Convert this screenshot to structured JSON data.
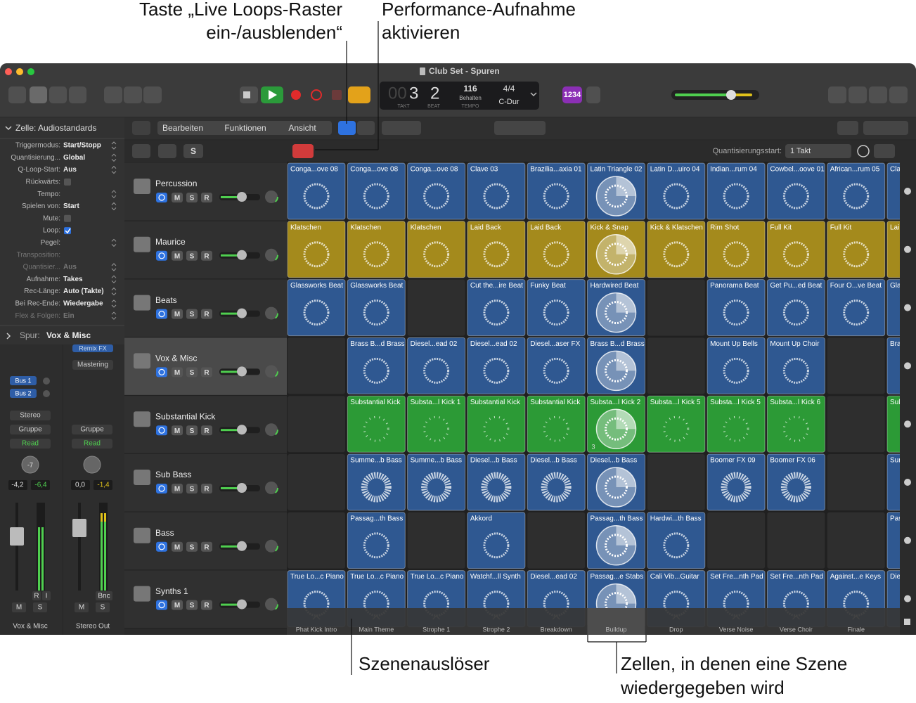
{
  "callouts": {
    "live_loops_toggle": [
      "Taste „Live Loops-Raster",
      "ein-/ausblenden“"
    ],
    "performance_recording": [
      "Performance-Aufnahme",
      "aktivieren"
    ],
    "scene_trigger": [
      "Szenenauslöser"
    ],
    "scene_cells": [
      "Zellen, in denen eine Szene",
      "wiedergegeben wird"
    ]
  },
  "window": {
    "title": "Club Set - Spuren"
  },
  "lcd": {
    "bar_dim": "00",
    "bar": "3",
    "beat": "2",
    "bar_label": "TAKT",
    "beat_label": "BEAT",
    "tempo": "116",
    "tempo_mode": "Behalten",
    "tempo_label": "TEMPO",
    "signature": "4/4",
    "key": "C-Dur"
  },
  "toolbar": {
    "count_in": "1234",
    "menus": [
      "Bearbeiten",
      "Funktionen",
      "Ansicht"
    ],
    "solo": "S",
    "quantize_label": "Quantisierungsstart:",
    "quantize_value": "1 Takt"
  },
  "inspector": {
    "header": "Zelle: Audiostandards",
    "rows": [
      {
        "label": "Triggermodus:",
        "value": "Start/Stopp"
      },
      {
        "label": "Quantisierung...",
        "value": "Global"
      },
      {
        "label": "Q-Loop-Start:",
        "value": "Aus"
      },
      {
        "label": "Rückwärts:",
        "checked": false
      },
      {
        "label": "Tempo:",
        "value": null
      },
      {
        "label": "Spielen von:",
        "value": "Start"
      },
      {
        "label": "Mute:",
        "checked": false
      },
      {
        "label": "Loop:",
        "checked": true
      },
      {
        "label": "Pegel:",
        "value": null
      },
      {
        "label": "Transposition:",
        "value": null,
        "dim": true
      },
      {
        "label": "Quantisier...",
        "value": "Aus",
        "dim": true
      },
      {
        "label": "Aufnahme:",
        "value": "Takes"
      },
      {
        "label": "Rec-Länge:",
        "value": "Auto (Takte)"
      },
      {
        "label": "Bei Rec-Ende:",
        "value": "Wiedergabe"
      },
      {
        "label": "Flex & Folgen:",
        "value": "Ein",
        "dim": true
      }
    ],
    "track_label": "Spur:",
    "track_name": "Vox & Misc"
  },
  "mixer": {
    "inserts": [
      "Remix FX",
      "Mastering"
    ],
    "sends": [
      "Bus 1",
      "Bus 2"
    ],
    "output": "Stereo",
    "group": "Gruppe",
    "automation": "Read",
    "pan": "-7",
    "mute_solo": [
      "M",
      "S"
    ],
    "strips": [
      {
        "name": "Vox & Misc",
        "levels": [
          "-4,2",
          "-6,4"
        ],
        "buttons": [
          "R",
          "I"
        ]
      },
      {
        "name": "Stereo Out",
        "levels": [
          "0,0",
          "-1,4"
        ],
        "buttons": [
          "Bnc"
        ]
      }
    ]
  },
  "track_buttons": [
    "M",
    "S",
    "R"
  ],
  "tracks": [
    "Percussion",
    "Maurice",
    "Beats",
    "Vox & Misc",
    "Substantial Kick",
    "Sub Bass",
    "Bass",
    "Synths 1"
  ],
  "selected_track": 3,
  "cells": [
    {
      "color": "#2f5891",
      "clips": [
        "Conga...ove 08",
        "Conga...ove 08",
        "Conga...ove 08",
        "Clave 03",
        "Brazilia...axia 01",
        "Latin Triangle 02",
        "Latin D...uiro 04",
        "Indian...rum 04",
        "Cowbel...oove 01",
        "African...rum 05",
        "Cla"
      ]
    },
    {
      "color": "#a48a1c",
      "clips": [
        "Klatschen",
        "Klatschen",
        "Klatschen",
        "Laid Back",
        "Laid Back",
        "Kick & Snap",
        "Kick & Klatschen",
        "Rim Shot",
        "Full Kit",
        "Full Kit",
        "Lai"
      ]
    },
    {
      "color": "#2f5891",
      "clips": [
        "Glassworks Beat",
        "Glassworks Beat",
        null,
        "Cut the...ire Beat",
        "Funky Beat",
        "Hardwired Beat",
        null,
        "Panorama Beat",
        "Get Pu...ed Beat",
        "Four O...ve Beat",
        "Gla"
      ]
    },
    {
      "color": "#2f5891",
      "clips": [
        null,
        "Brass B...d Brass",
        "Diesel...ead 02",
        "Diesel...ead 02",
        "Diesel...aser FX",
        "Brass B...d Brass",
        null,
        "Mount Up Bells",
        "Mount Up Choir",
        null,
        "Bra"
      ]
    },
    {
      "color": "#2c9a36",
      "clips": [
        null,
        "Substantial Kick",
        "Substa...l Kick 1",
        "Substantial Kick",
        "Substantial Kick",
        "Substa...l Kick 2",
        "Substa...l Kick 5",
        "Substa...l Kick 5",
        "Substa...l Kick 6",
        null,
        "Sul"
      ]
    },
    {
      "color": "#2f5891",
      "clips": [
        null,
        "Summe...b Bass",
        "Summe...b Bass",
        "Diesel...b Bass",
        "Diesel...b Bass",
        "Diesel...b Bass",
        null,
        "Boomer FX 09",
        "Boomer FX 06",
        null,
        "Sur"
      ]
    },
    {
      "color": "#2f5891",
      "clips": [
        null,
        "Passag...th Bass",
        null,
        "Akkord",
        null,
        "Passag...th Bass",
        "Hardwi...th Bass",
        null,
        null,
        null,
        "Pas"
      ]
    },
    {
      "color": "#2f5891",
      "clips": [
        "True Lo...c Piano",
        "True Lo...c Piano",
        "True Lo...c Piano",
        "Watchf...ll Synth",
        "Diesel...ead 02",
        "Passag...e Stabs",
        "Cali Vib...Guitar",
        "Set Fre...nth Pad",
        "Set Fre...nth Pad",
        "Against...e Keys",
        "Die"
      ]
    }
  ],
  "take_badge": "3",
  "scenes": [
    "Phat Kick Intro",
    "Main Theme",
    "Strophe 1",
    "Strophe 2",
    "Breakdown",
    "Buildup",
    "Drop",
    "Verse Noise",
    "Verse Choir",
    "Finale"
  ],
  "playing_scene": 5
}
